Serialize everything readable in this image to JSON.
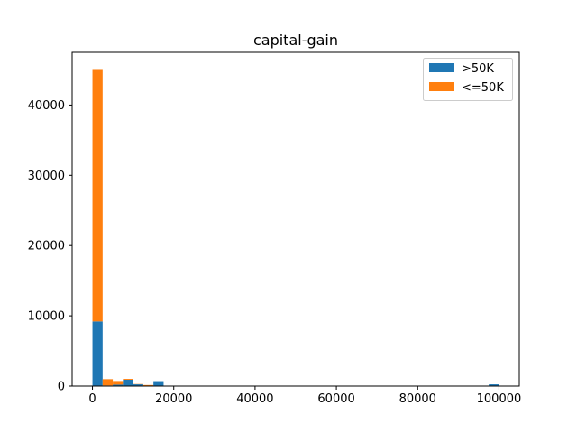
{
  "chart_data": {
    "type": "bar",
    "subtype": "stacked-histogram",
    "title": "capital-gain",
    "xlabel": "",
    "ylabel": "",
    "xlim": [
      -4999.95,
      104999.95
    ],
    "ylim": [
      0,
      47500
    ],
    "bin_width": 2499.99,
    "bins_start": [
      0,
      2499.99,
      4999.98,
      7499.97,
      9999.96,
      12499.95,
      14999.94,
      97499.61
    ],
    "series": [
      {
        "name": ">50K",
        "color": "#1f77b4",
        "values": [
          9200,
          80,
          200,
          900,
          250,
          0,
          700,
          250
        ]
      },
      {
        "name": "<=50K",
        "color": "#ff7f0e",
        "values": [
          35800,
          900,
          520,
          120,
          40,
          150,
          0,
          0
        ]
      }
    ],
    "x_ticks": [
      0,
      20000,
      40000,
      60000,
      80000,
      100000
    ],
    "x_tick_labels": [
      "0",
      "20000",
      "40000",
      "60000",
      "80000",
      "100000"
    ],
    "y_ticks": [
      0,
      10000,
      20000,
      30000,
      40000
    ],
    "y_tick_labels": [
      "0",
      "10000",
      "20000",
      "30000",
      "40000"
    ],
    "legend": {
      "placement": "upper-right",
      "entries": [
        ">50K",
        "<=50K"
      ]
    },
    "grid": false
  }
}
